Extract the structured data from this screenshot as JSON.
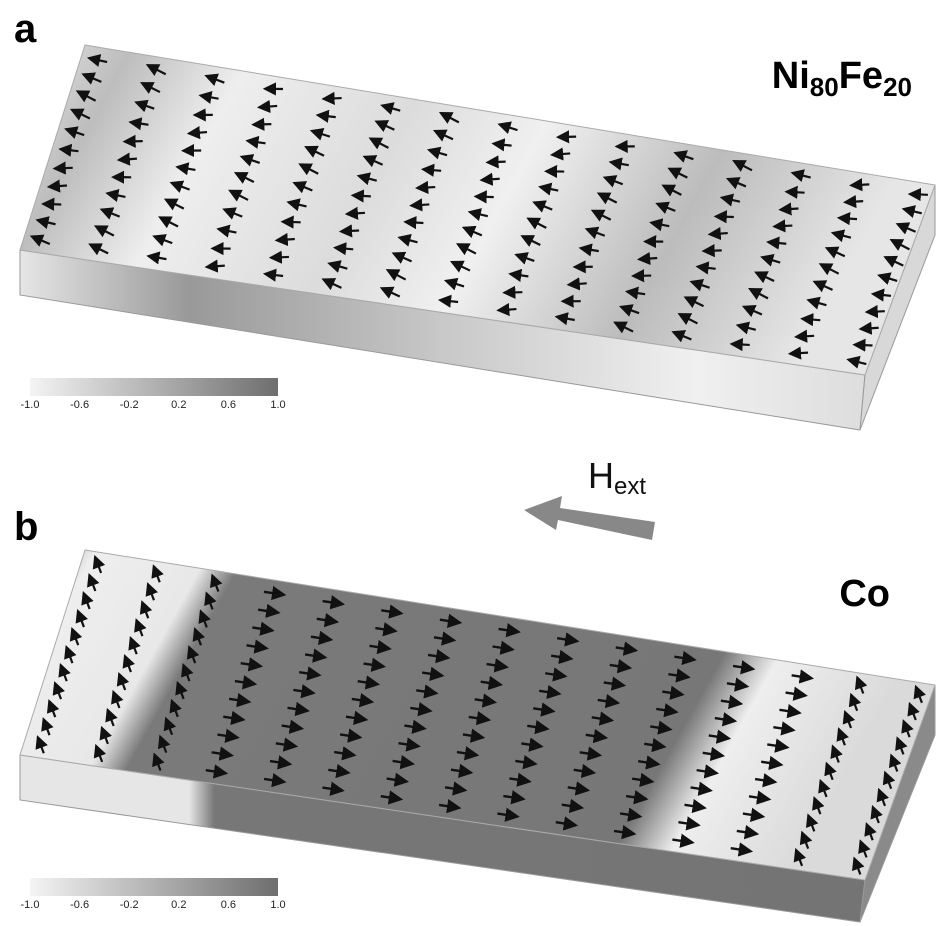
{
  "panel_a": {
    "label": "a",
    "material": {
      "element1": "Ni",
      "sub1": "80",
      "element2": "Fe",
      "sub2": "20"
    },
    "colorbar": {
      "ticks": [
        "-1.0",
        "-0.6",
        "-0.2",
        "0.2",
        "0.6",
        "1.0"
      ]
    }
  },
  "field": {
    "symbol": "H",
    "subscript": "ext"
  },
  "panel_b": {
    "label": "b",
    "material": "Co",
    "colorbar": {
      "ticks": [
        "-1.0",
        "-0.6",
        "-0.2",
        "0.2",
        "0.6",
        "1.0"
      ]
    }
  }
}
